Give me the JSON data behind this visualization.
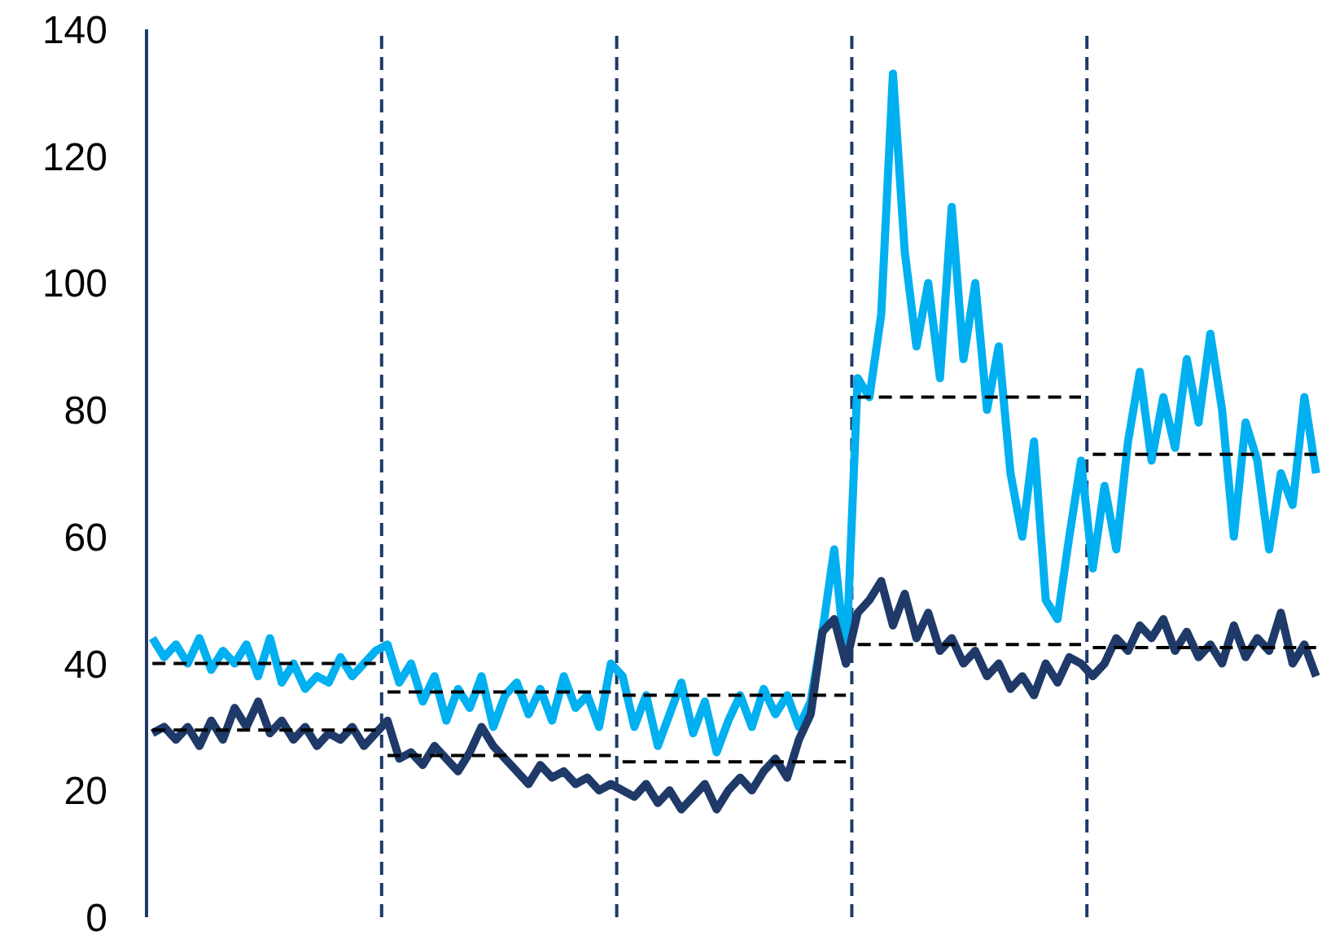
{
  "chart_data": {
    "type": "line",
    "categories": [
      null,
      null,
      null,
      null,
      null,
      null,
      null,
      null,
      null,
      null,
      null,
      null,
      null,
      null,
      null,
      null,
      null,
      null,
      null,
      null,
      null,
      null,
      null,
      null,
      null,
      null,
      null,
      null,
      null,
      null,
      null,
      null,
      null,
      null,
      null,
      null,
      null,
      null,
      null,
      null,
      null,
      null,
      null,
      null,
      null,
      null,
      null,
      null,
      null,
      null,
      null,
      null,
      null,
      null,
      null,
      null,
      null,
      null,
      null,
      null,
      null,
      null,
      null,
      null,
      null,
      null,
      null,
      null,
      null,
      null,
      null,
      null,
      null,
      null,
      null,
      null,
      null,
      null,
      null,
      null,
      null,
      null,
      null,
      null,
      null,
      null,
      null,
      null,
      null,
      null,
      null,
      null,
      null,
      null,
      null,
      null,
      null,
      null,
      null,
      null
    ],
    "ylim": [
      0,
      140
    ],
    "yticks": [
      0,
      20,
      40,
      60,
      80,
      100,
      120,
      140
    ],
    "tick_labels": "y",
    "marker": "none",
    "series": [
      {
        "color": "#00b0f0",
        "values": [
          44,
          41,
          43,
          40,
          44,
          39,
          42,
          40,
          43,
          38,
          44,
          37,
          40,
          36,
          38,
          37,
          41,
          38,
          40,
          42,
          43,
          37,
          40,
          34,
          38,
          31,
          36,
          33,
          38,
          30,
          35,
          37,
          32,
          36,
          31,
          38,
          33,
          35,
          30,
          40,
          38,
          30,
          35,
          27,
          32,
          37,
          29,
          34,
          26,
          31,
          35,
          30,
          36,
          32,
          35,
          30,
          34,
          45,
          58,
          40,
          85,
          82,
          95,
          133,
          105,
          90,
          100,
          85,
          112,
          88,
          100,
          80,
          90,
          70,
          60,
          75,
          50,
          47,
          60,
          72,
          55,
          68,
          58,
          75,
          86,
          72,
          82,
          74,
          88,
          78,
          92,
          80,
          60,
          78,
          72,
          58,
          70,
          65,
          82,
          70
        ]
      },
      {
        "color": "#1f3a68",
        "values": [
          29,
          30,
          28,
          30,
          27,
          31,
          28,
          33,
          30,
          34,
          29,
          31,
          28,
          30,
          27,
          29,
          28,
          30,
          27,
          29,
          31,
          25,
          26,
          24,
          27,
          25,
          23,
          26,
          30,
          27,
          25,
          23,
          21,
          24,
          22,
          23,
          21,
          22,
          20,
          21,
          20,
          19,
          21,
          18,
          20,
          17,
          19,
          21,
          17,
          20,
          22,
          20,
          23,
          25,
          22,
          28,
          32,
          45,
          47,
          40,
          48,
          50,
          53,
          46,
          51,
          44,
          48,
          42,
          44,
          40,
          42,
          38,
          40,
          36,
          38,
          35,
          40,
          37,
          41,
          40,
          38,
          40,
          44,
          42,
          46,
          44,
          47,
          42,
          45,
          41,
          43,
          40,
          46,
          41,
          44,
          42,
          48,
          40,
          43,
          38
        ]
      },
      {
        "color": "#000000",
        "line_style": "dashed",
        "values": [
          40,
          40,
          40,
          40,
          40,
          40,
          40,
          40,
          40,
          40,
          40,
          40,
          40,
          40,
          40,
          40,
          40,
          40,
          40,
          40,
          null,
          null,
          null,
          null,
          null,
          null,
          null,
          null,
          null,
          null,
          null,
          null,
          null,
          null,
          null,
          null,
          null,
          null,
          null,
          null,
          35,
          35,
          35,
          35,
          35,
          35,
          35,
          35,
          35,
          35,
          35,
          35,
          35,
          35,
          35,
          35,
          35,
          35,
          35,
          35,
          null,
          null,
          null,
          null,
          null,
          null,
          null,
          null,
          null,
          null,
          null,
          null,
          null,
          null,
          null,
          null,
          null,
          null,
          null,
          null,
          73,
          73,
          73,
          73,
          73,
          73,
          73,
          73,
          73,
          73,
          73,
          73,
          73,
          73,
          73,
          73,
          73,
          73,
          73,
          73
        ]
      },
      {
        "color": "#000000",
        "line_style": "dashed",
        "values": [
          null,
          null,
          null,
          null,
          null,
          null,
          null,
          null,
          null,
          null,
          null,
          null,
          null,
          null,
          null,
          null,
          null,
          null,
          null,
          null,
          35.5,
          35.5,
          35.5,
          35.5,
          35.5,
          35.5,
          35.5,
          35.5,
          35.5,
          35.5,
          35.5,
          35.5,
          35.5,
          35.5,
          35.5,
          35.5,
          35.5,
          35.5,
          35.5,
          35.5,
          null,
          null,
          null,
          null,
          null,
          null,
          null,
          null,
          null,
          null,
          null,
          null,
          null,
          null,
          null,
          null,
          null,
          null,
          null,
          null,
          82,
          82,
          82,
          82,
          82,
          82,
          82,
          82,
          82,
          82,
          82,
          82,
          82,
          82,
          82,
          82,
          82,
          82,
          82,
          82,
          null,
          null,
          null,
          null,
          null,
          null,
          null,
          null,
          null,
          null,
          null,
          null,
          null,
          null,
          null,
          null,
          null,
          null,
          null,
          null
        ]
      },
      {
        "color": "#000000",
        "line_style": "dashed",
        "values": [
          29.5,
          29.5,
          29.5,
          29.5,
          29.5,
          29.5,
          29.5,
          29.5,
          29.5,
          29.5,
          29.5,
          29.5,
          29.5,
          29.5,
          29.5,
          29.5,
          29.5,
          29.5,
          29.5,
          29.5,
          null,
          null,
          null,
          null,
          null,
          null,
          null,
          null,
          null,
          null,
          null,
          null,
          null,
          null,
          null,
          null,
          null,
          null,
          null,
          null,
          24.5,
          24.5,
          24.5,
          24.5,
          24.5,
          24.5,
          24.5,
          24.5,
          24.5,
          24.5,
          24.5,
          24.5,
          24.5,
          24.5,
          24.5,
          24.5,
          24.5,
          24.5,
          24.5,
          24.5,
          null,
          null,
          null,
          null,
          null,
          null,
          null,
          null,
          null,
          null,
          null,
          null,
          null,
          null,
          null,
          null,
          null,
          null,
          null,
          null,
          42.5,
          42.5,
          42.5,
          42.5,
          42.5,
          42.5,
          42.5,
          42.5,
          42.5,
          42.5,
          42.5,
          42.5,
          42.5,
          42.5,
          42.5,
          42.5,
          42.5,
          42.5,
          42.5,
          42.5
        ]
      },
      {
        "color": "#000000",
        "line_style": "dashed",
        "values": [
          null,
          null,
          null,
          null,
          null,
          null,
          null,
          null,
          null,
          null,
          null,
          null,
          null,
          null,
          null,
          null,
          null,
          null,
          null,
          null,
          25.5,
          25.5,
          25.5,
          25.5,
          25.5,
          25.5,
          25.5,
          25.5,
          25.5,
          25.5,
          25.5,
          25.5,
          25.5,
          25.5,
          25.5,
          25.5,
          25.5,
          25.5,
          25.5,
          25.5,
          null,
          null,
          null,
          null,
          null,
          null,
          null,
          null,
          null,
          null,
          null,
          null,
          null,
          null,
          null,
          null,
          null,
          null,
          null,
          null,
          43,
          43,
          43,
          43,
          43,
          43,
          43,
          43,
          43,
          43,
          43,
          43,
          43,
          43,
          43,
          43,
          43,
          43,
          43,
          43,
          null,
          null,
          null,
          null,
          null,
          null,
          null,
          null,
          null,
          null,
          null,
          null,
          null,
          null,
          null,
          null,
          null,
          null,
          null,
          null
        ]
      }
    ]
  }
}
